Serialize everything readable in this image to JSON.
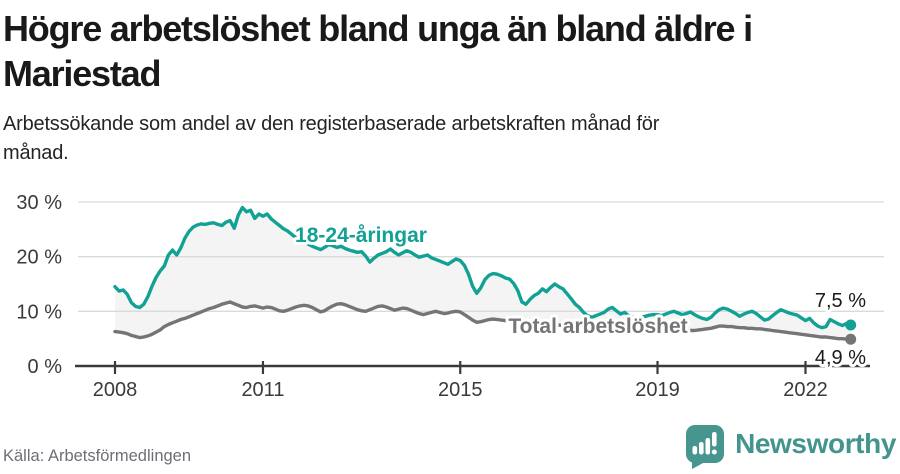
{
  "header": {
    "title": "Högre arbetslöshet bland unga än bland äldre i\nMariestad",
    "subtitle": "Arbetssökande som andel av den registerbaserade arbetskraften månad för\nmånad."
  },
  "footer": {
    "source": "Källa: Arbetsförmedlingen",
    "brand": "Newsworthy",
    "logo_icon": "speech-bubble-bar-chart-exclamation-icon"
  },
  "colors": {
    "youth_teal": "#12a195",
    "total_gray": "#757578",
    "brand_teal": "#46968f",
    "area_fill": "#f4f4f4",
    "grid": "#dadada",
    "axis": "#3a3a3a",
    "title_text": "#191919",
    "source_text": "#6e6e78"
  },
  "chart_data": {
    "type": "line",
    "title": "Högre arbetslöshet bland unga än bland äldre i Mariestad",
    "subtitle": "Arbetssökande som andel av den registerbaserade arbetskraften månad för månad.",
    "x_unit": "month",
    "x_range": [
      "2008-01",
      "2022-12"
    ],
    "x_tick_years": [
      2008,
      2011,
      2015,
      2019,
      2022
    ],
    "x_tick_labels": [
      "2008",
      "2011",
      "2015",
      "2019",
      "2022"
    ],
    "y_tick_values": [
      0,
      10,
      20,
      30
    ],
    "y_tick_labels": [
      "0 %",
      "10 %",
      "20 %",
      "30 %"
    ],
    "ylim": [
      0,
      33
    ],
    "grid": "horizontal",
    "legend_position": "inline-labels",
    "area_between_series": true,
    "area_color": "#f4f4f4",
    "series": [
      {
        "name": "18-24-åringar",
        "color": "#12a195",
        "end_label": "7,5 %",
        "end_value": 7.5,
        "values": [
          14.5,
          13.7,
          13.9,
          13.1,
          11.6,
          10.9,
          10.7,
          11.3,
          12.7,
          14.6,
          16.2,
          17.4,
          18.3,
          20.3,
          21.2,
          20.3,
          21.6,
          23.4,
          24.6,
          25.4,
          25.8,
          26.0,
          25.9,
          26.1,
          26.2,
          25.9,
          25.7,
          26.3,
          26.6,
          25.2,
          27.6,
          29.0,
          28.2,
          28.5,
          27.0,
          27.8,
          27.4,
          27.8,
          26.9,
          26.3,
          25.7,
          25.1,
          24.7,
          24.1,
          23.5,
          23.0,
          22.6,
          22.3,
          21.9,
          21.6,
          21.3,
          21.7,
          22.2,
          22.0,
          21.7,
          21.9,
          21.5,
          21.2,
          21.0,
          20.8,
          20.9,
          20.1,
          19.0,
          19.7,
          20.3,
          20.6,
          20.9,
          21.4,
          20.8,
          20.3,
          20.7,
          21.1,
          20.8,
          20.3,
          19.9,
          20.1,
          20.3,
          19.8,
          19.5,
          19.2,
          18.9,
          18.6,
          19.1,
          19.6,
          19.3,
          18.4,
          16.8,
          14.6,
          13.3,
          14.3,
          15.8,
          16.6,
          16.9,
          16.8,
          16.5,
          16.1,
          15.9,
          15.1,
          13.8,
          11.7,
          11.3,
          12.2,
          12.9,
          13.3,
          14.1,
          13.6,
          14.4,
          15.0,
          14.5,
          14.1,
          13.2,
          12.3,
          11.3,
          10.7,
          9.8,
          9.2,
          8.9,
          9.2,
          9.5,
          9.8,
          10.4,
          10.7,
          10.1,
          9.5,
          9.8,
          9.2,
          8.9,
          8.7,
          8.9,
          9.1,
          9.3,
          9.4,
          9.4,
          9.2,
          9.5,
          9.8,
          10.0,
          9.7,
          9.4,
          9.6,
          9.9,
          9.4,
          9.0,
          8.7,
          8.5,
          8.9,
          9.7,
          10.3,
          10.6,
          10.4,
          10.0,
          9.6,
          9.1,
          9.5,
          9.8,
          10.0,
          9.6,
          9.0,
          8.4,
          8.6,
          9.2,
          9.8,
          10.3,
          10.0,
          9.7,
          9.5,
          9.3,
          8.8,
          8.3,
          8.7,
          7.9,
          7.3,
          7.0,
          7.2,
          8.5,
          8.1,
          7.7,
          7.4,
          7.8,
          7.5
        ]
      },
      {
        "name": "Total arbetslöshet",
        "color": "#757578",
        "end_label": "4,9 %",
        "end_value": 4.9,
        "values": [
          6.3,
          6.2,
          6.1,
          5.9,
          5.6,
          5.4,
          5.2,
          5.3,
          5.5,
          5.8,
          6.2,
          6.6,
          7.2,
          7.6,
          7.9,
          8.2,
          8.5,
          8.7,
          9.0,
          9.3,
          9.6,
          9.9,
          10.2,
          10.5,
          10.7,
          11.0,
          11.3,
          11.5,
          11.7,
          11.4,
          11.1,
          10.8,
          10.7,
          10.9,
          11.0,
          10.8,
          10.6,
          10.8,
          10.7,
          10.4,
          10.1,
          10.0,
          10.2,
          10.5,
          10.8,
          11.0,
          11.1,
          11.0,
          10.7,
          10.3,
          9.9,
          10.1,
          10.6,
          11.0,
          11.3,
          11.4,
          11.2,
          10.9,
          10.6,
          10.3,
          10.1,
          10.0,
          10.3,
          10.6,
          10.9,
          11.0,
          10.8,
          10.5,
          10.2,
          10.4,
          10.6,
          10.5,
          10.2,
          9.9,
          9.6,
          9.4,
          9.6,
          9.8,
          10.0,
          9.8,
          9.6,
          9.7,
          9.9,
          10.0,
          9.9,
          9.4,
          8.9,
          8.4,
          8.0,
          8.1,
          8.3,
          8.5,
          8.6,
          8.5,
          8.4,
          8.3,
          8.2,
          8.1,
          8.0,
          7.9,
          7.8,
          7.8,
          7.9,
          8.0,
          7.9,
          7.8,
          7.7,
          7.6,
          7.5,
          7.4,
          7.3,
          7.2,
          7.1,
          7.0,
          6.9,
          6.8,
          6.8,
          6.7,
          6.7,
          6.6,
          6.5,
          6.5,
          6.4,
          6.4,
          6.3,
          6.3,
          6.2,
          6.2,
          6.1,
          6.1,
          6.2,
          6.2,
          6.3,
          6.2,
          6.2,
          6.1,
          6.1,
          6.2,
          6.3,
          6.4,
          6.5,
          6.5,
          6.6,
          6.7,
          6.8,
          6.9,
          7.1,
          7.3,
          7.3,
          7.2,
          7.2,
          7.1,
          7.0,
          7.0,
          6.9,
          6.9,
          6.8,
          6.8,
          6.7,
          6.6,
          6.5,
          6.4,
          6.3,
          6.2,
          6.1,
          6.0,
          5.9,
          5.8,
          5.7,
          5.6,
          5.5,
          5.4,
          5.3,
          5.3,
          5.2,
          5.1,
          5.0,
          5.0,
          4.9,
          4.9
        ]
      }
    ]
  }
}
